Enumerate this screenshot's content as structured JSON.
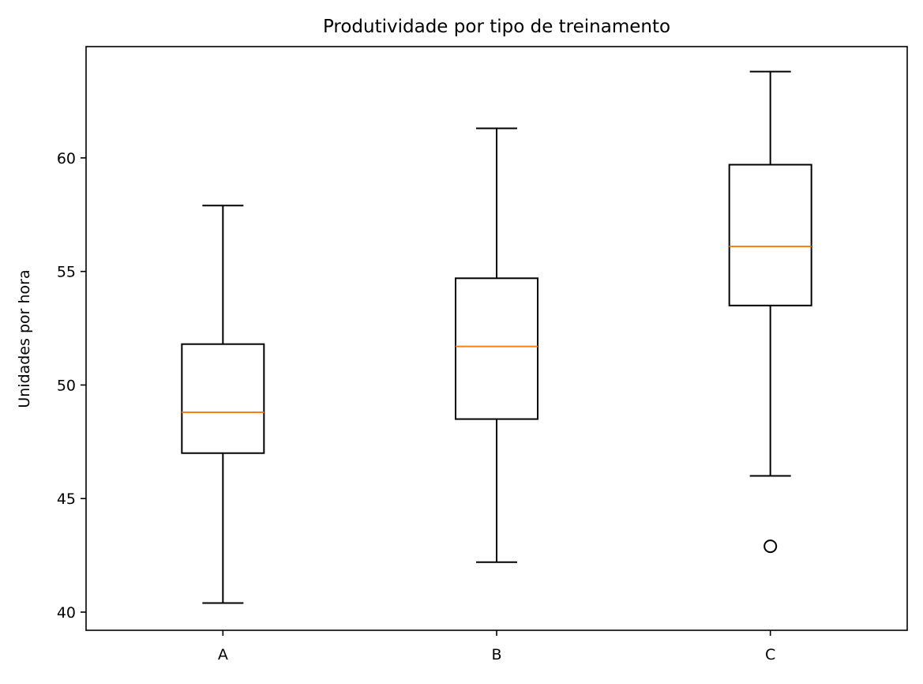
{
  "chart_data": {
    "type": "boxplot",
    "title": "Produtividade por tipo de treinamento",
    "xlabel": "",
    "ylabel": "Unidades por hora",
    "categories": [
      "A",
      "B",
      "C"
    ],
    "ylim": [
      39.2,
      64.9
    ],
    "yticks": [
      40,
      45,
      50,
      55,
      60
    ],
    "grid": false,
    "boxes": [
      {
        "category": "A",
        "whisker_low": 40.4,
        "q1": 47.0,
        "median": 48.8,
        "q3": 51.8,
        "whisker_high": 57.9,
        "outliers": []
      },
      {
        "category": "B",
        "whisker_low": 42.2,
        "q1": 48.5,
        "median": 51.7,
        "q3": 54.7,
        "whisker_high": 61.3,
        "outliers": []
      },
      {
        "category": "C",
        "whisker_low": 46.0,
        "q1": 53.5,
        "median": 56.1,
        "q3": 59.7,
        "whisker_high": 63.8,
        "outliers": [
          42.9
        ]
      }
    ],
    "colors": {
      "box": "#000000",
      "median": "#ff7f0e",
      "background": "#ffffff"
    }
  }
}
